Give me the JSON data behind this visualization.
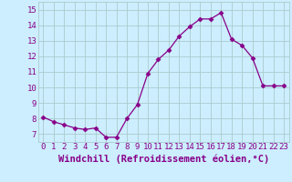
{
  "x": [
    0,
    1,
    2,
    3,
    4,
    5,
    6,
    7,
    8,
    9,
    10,
    11,
    12,
    13,
    14,
    15,
    16,
    17,
    18,
    19,
    20,
    21,
    22,
    23
  ],
  "y": [
    8.1,
    7.8,
    7.6,
    7.4,
    7.3,
    7.4,
    6.8,
    6.8,
    8.0,
    8.9,
    10.9,
    11.8,
    12.4,
    13.3,
    13.9,
    14.4,
    14.4,
    14.8,
    13.1,
    12.7,
    11.9,
    10.1,
    10.1,
    10.1
  ],
  "xlabel": "Windchill (Refroidissement éolien,°C)",
  "ylim": [
    6.5,
    15.5
  ],
  "yticks": [
    7,
    8,
    9,
    10,
    11,
    12,
    13,
    14,
    15
  ],
  "xticks": [
    0,
    1,
    2,
    3,
    4,
    5,
    6,
    7,
    8,
    9,
    10,
    11,
    12,
    13,
    14,
    15,
    16,
    17,
    18,
    19,
    20,
    21,
    22,
    23
  ],
  "line_color": "#880088",
  "marker": "D",
  "marker_size": 2.5,
  "bg_color": "#cceeff",
  "grid_color": "#aacccc",
  "xlabel_fontsize": 7.5,
  "tick_fontsize": 6.5
}
